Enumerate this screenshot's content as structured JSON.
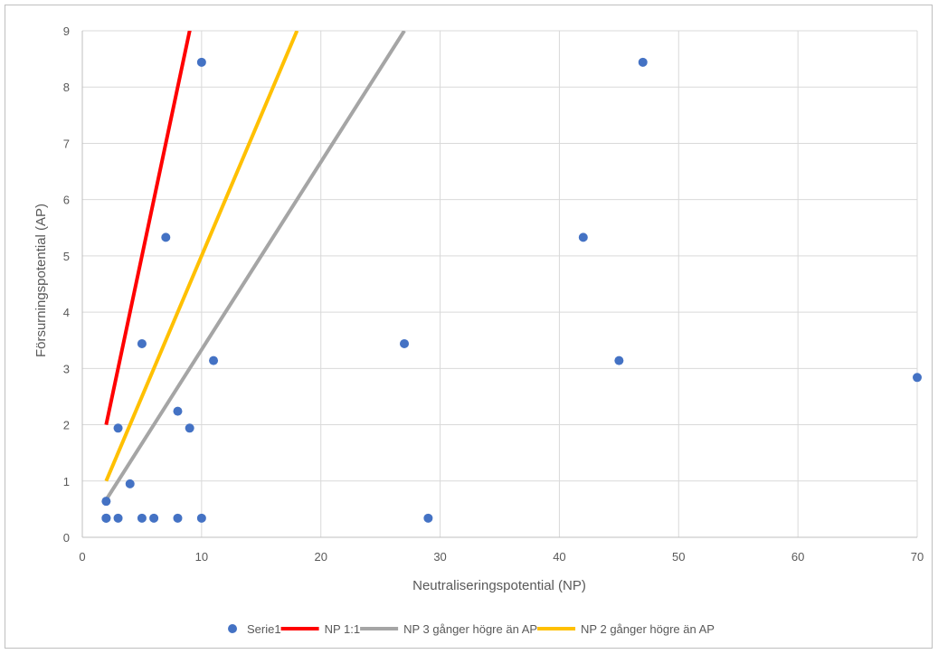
{
  "chart_data": {
    "type": "scatter",
    "title": "",
    "xlabel": "Neutraliseringspotential (NP)",
    "ylabel": "Försurningspotential (AP)",
    "xlim": [
      0,
      70
    ],
    "ylim": [
      0,
      9
    ],
    "xticks": [
      0,
      10,
      20,
      30,
      40,
      50,
      60,
      70
    ],
    "yticks": [
      0,
      1,
      2,
      3,
      4,
      5,
      6,
      7,
      8,
      9
    ],
    "grid": true,
    "legend_position": "bottom",
    "series": [
      {
        "name": "Serie1",
        "kind": "scatter",
        "color": "#4472c4",
        "points": [
          [
            2,
            0.34
          ],
          [
            2,
            0.34
          ],
          [
            2,
            0.64
          ],
          [
            3,
            0.34
          ],
          [
            3,
            1.94
          ],
          [
            4,
            0.95
          ],
          [
            5,
            0.34
          ],
          [
            5,
            3.44
          ],
          [
            6,
            0.34
          ],
          [
            7,
            5.33
          ],
          [
            8,
            0.34
          ],
          [
            8,
            2.24
          ],
          [
            9,
            1.94
          ],
          [
            10,
            0.34
          ],
          [
            10,
            8.44
          ],
          [
            11,
            3.14
          ],
          [
            27,
            3.44
          ],
          [
            29,
            0.34
          ],
          [
            42,
            5.33
          ],
          [
            45,
            3.14
          ],
          [
            47,
            8.44
          ],
          [
            70,
            2.84
          ]
        ]
      },
      {
        "name": "NP 1:1",
        "kind": "line",
        "color": "#ff0000",
        "points": [
          [
            2,
            2
          ],
          [
            9.2,
            9.2
          ]
        ]
      },
      {
        "name": "NP 3 gånger högre än AP",
        "kind": "line",
        "color": "#a5a5a5",
        "points": [
          [
            2,
            0.667
          ],
          [
            27,
            9
          ]
        ]
      },
      {
        "name": "NP 2 gånger högre än AP",
        "kind": "line",
        "color": "#ffc000",
        "points": [
          [
            2,
            1
          ],
          [
            18,
            9
          ]
        ]
      }
    ],
    "legend_order": [
      "Serie1",
      "NP 1:1",
      "NP 3 gånger högre än AP",
      "NP 2 gånger högre än AP"
    ]
  }
}
